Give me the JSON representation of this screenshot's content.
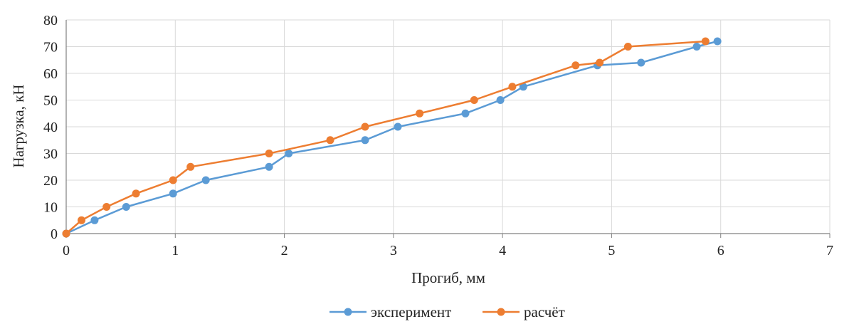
{
  "chart_data": {
    "type": "line",
    "xlabel": "Прогиб, мм",
    "ylabel": "Нагрузка, кН",
    "xlim": [
      0,
      7
    ],
    "ylim": [
      0,
      80
    ],
    "x_ticks": [
      0,
      1,
      2,
      3,
      4,
      5,
      6,
      7
    ],
    "y_ticks": [
      0,
      10,
      20,
      30,
      40,
      50,
      60,
      70,
      80
    ],
    "grid": true,
    "legend_position": "bottom",
    "series": [
      {
        "name": "эксперимент",
        "color": "#5b9bd5",
        "points": [
          [
            0,
            0
          ],
          [
            0.26,
            5
          ],
          [
            0.55,
            10
          ],
          [
            0.98,
            15
          ],
          [
            1.28,
            20
          ],
          [
            1.86,
            25
          ],
          [
            2.04,
            30
          ],
          [
            2.74,
            35
          ],
          [
            3.04,
            40
          ],
          [
            3.66,
            45
          ],
          [
            3.98,
            50
          ],
          [
            4.19,
            55
          ],
          [
            4.87,
            63
          ],
          [
            5.27,
            64
          ],
          [
            5.78,
            70
          ],
          [
            5.97,
            72
          ]
        ]
      },
      {
        "name": "расчёт",
        "color": "#ed7d31",
        "points": [
          [
            0,
            0
          ],
          [
            0.14,
            5
          ],
          [
            0.37,
            10
          ],
          [
            0.64,
            15
          ],
          [
            0.98,
            20
          ],
          [
            1.14,
            25
          ],
          [
            1.86,
            30
          ],
          [
            2.42,
            35
          ],
          [
            2.74,
            40
          ],
          [
            3.24,
            45
          ],
          [
            3.74,
            50
          ],
          [
            4.09,
            55
          ],
          [
            4.67,
            63
          ],
          [
            4.89,
            64
          ],
          [
            5.15,
            70
          ],
          [
            5.86,
            72
          ]
        ]
      }
    ]
  }
}
